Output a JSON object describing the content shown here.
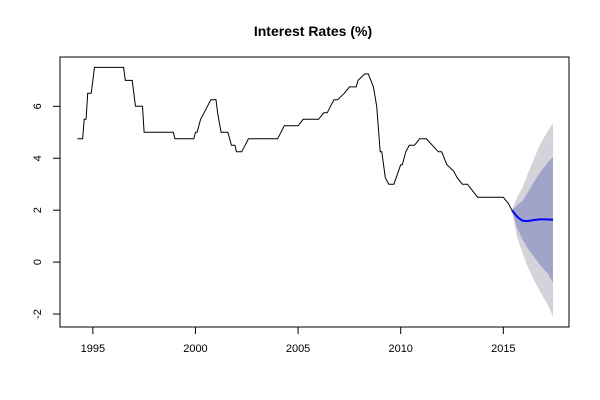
{
  "chart_data": {
    "type": "line",
    "title": "Interest Rates (%)",
    "xlabel": "",
    "ylabel": "",
    "xlim": [
      1993.4,
      2018.2
    ],
    "ylim": [
      -2.5,
      7.9
    ],
    "x_ticks": [
      1995,
      2000,
      2005,
      2010,
      2015
    ],
    "y_ticks": [
      -2,
      0,
      2,
      4,
      6
    ],
    "grid": false,
    "legend": "none",
    "colors": {
      "history": "#000000",
      "forecast": "#0000ff",
      "band80": "#a0a4c8",
      "band95": "#d3d3d9"
    },
    "series": [
      {
        "values_x": [
          1994.25,
          1994.5,
          1994.58,
          1994.67,
          1994.75,
          1994.92,
          1995.08,
          1996.5,
          1996.58,
          1996.92,
          1997.08,
          1997.42,
          1997.5,
          1998.92,
          1999.0,
          1999.92,
          2000.0,
          2000.08,
          2000.25,
          2000.42,
          2000.58,
          2000.75,
          2001.0,
          2001.08,
          2001.25,
          2001.58,
          2001.75,
          2001.92,
          2002.0,
          2002.25,
          2002.42,
          2002.58,
          2002.75,
          2003.08,
          2003.33,
          2004.0,
          2004.33,
          2004.67,
          2005.0,
          2005.25,
          2005.58,
          2006.0,
          2006.25,
          2006.42,
          2006.58,
          2006.75,
          2006.92,
          2007.25,
          2007.5,
          2007.83,
          2007.92,
          2008.25,
          2008.42,
          2008.67,
          2008.83,
          2009.0,
          2009.08,
          2009.25,
          2009.42,
          2009.58,
          2009.67,
          2010.0,
          2010.08,
          2010.25,
          2010.42,
          2010.67,
          2010.92,
          2011.0,
          2011.25,
          2011.83,
          2012.0,
          2012.25,
          2012.58,
          2012.75,
          2013.0,
          2013.25,
          2013.5,
          2013.75,
          2014.0,
          2014.5,
          2015.0,
          2015.25,
          2015.42
        ],
        "values_y": [
          4.75,
          4.75,
          5.5,
          5.5,
          6.5,
          6.5,
          7.5,
          7.5,
          7.0,
          7.0,
          6.0,
          6.0,
          5.0,
          5.0,
          4.75,
          4.75,
          5.0,
          5.0,
          5.5,
          5.75,
          6.0,
          6.25,
          6.25,
          5.75,
          5.0,
          5.0,
          4.5,
          4.5,
          4.25,
          4.25,
          4.5,
          4.75,
          4.75,
          4.75,
          4.75,
          4.75,
          5.25,
          5.25,
          5.25,
          5.5,
          5.5,
          5.5,
          5.75,
          5.75,
          6.0,
          6.25,
          6.25,
          6.5,
          6.75,
          6.75,
          7.0,
          7.25,
          7.25,
          6.75,
          6.0,
          4.25,
          4.25,
          3.25,
          3.0,
          3.0,
          3.0,
          3.75,
          3.75,
          4.25,
          4.5,
          4.5,
          4.75,
          4.75,
          4.75,
          4.25,
          4.25,
          3.75,
          3.5,
          3.25,
          3.0,
          3.0,
          2.75,
          2.5,
          2.5,
          2.5,
          2.5,
          2.25,
          2.0
        ]
      },
      {
        "values_x": [
          2015.42,
          2015.67,
          2015.92,
          2016.17,
          2016.5,
          2016.83,
          2017.17,
          2017.42
        ],
        "values_y": [
          2.0,
          1.75,
          1.6,
          1.58,
          1.62,
          1.65,
          1.64,
          1.63
        ],
        "lo80": [
          2.0,
          1.3,
          0.9,
          0.55,
          0.2,
          -0.15,
          -0.45,
          -0.8
        ],
        "hi80": [
          2.0,
          2.2,
          2.35,
          2.65,
          3.1,
          3.5,
          3.85,
          4.05
        ],
        "lo95": [
          2.0,
          0.95,
          0.4,
          -0.15,
          -0.7,
          -1.2,
          -1.65,
          -2.1
        ],
        "hi95": [
          2.0,
          2.5,
          2.85,
          3.35,
          4.0,
          4.6,
          5.05,
          5.35
        ]
      }
    ]
  }
}
